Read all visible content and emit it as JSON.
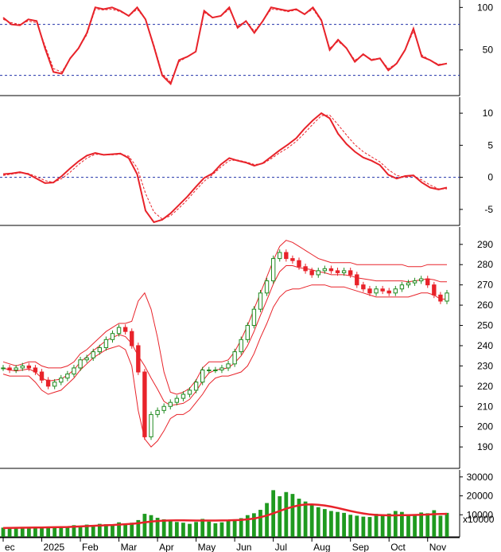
{
  "colors": {
    "price_line": "#e8232a",
    "signal_line": "#e8232a",
    "up_candle": "#1f8a1f",
    "down_candle": "#e8232a",
    "band": "#e8232a",
    "volume_bar": "#1f9a1f",
    "volume_ma": "#e8232a",
    "ref_line": "#2233aa",
    "axis": "#000000"
  },
  "chart_data": [
    {
      "type": "line",
      "title": "",
      "ylim": [
        0,
        105
      ],
      "ticks": [
        {
          "value": 100,
          "label": "100"
        },
        {
          "value": 50,
          "label": "50"
        }
      ],
      "ref_lines": [
        80,
        20
      ],
      "series": [
        {
          "role": "main",
          "values": [
            88,
            80,
            79,
            86,
            84,
            52,
            24,
            22,
            40,
            52,
            70,
            100,
            98,
            100,
            96,
            90,
            100,
            86,
            54,
            20,
            10,
            38,
            42,
            48,
            96,
            88,
            90,
            100,
            76,
            84,
            70,
            84,
            100,
            98,
            96,
            98,
            92,
            100,
            85,
            50,
            62,
            52,
            36,
            45,
            38,
            40,
            26,
            34,
            50,
            75,
            42,
            38,
            32,
            34
          ]
        },
        {
          "role": "signal",
          "values": [
            86,
            82,
            80,
            84,
            82,
            55,
            28,
            24,
            40,
            52,
            68,
            98,
            97,
            98,
            95,
            90,
            98,
            86,
            56,
            22,
            12,
            36,
            42,
            48,
            94,
            88,
            90,
            98,
            78,
            84,
            72,
            84,
            98,
            97,
            95,
            97,
            92,
            98,
            84,
            52,
            60,
            52,
            38,
            44,
            39,
            40,
            28,
            34,
            50,
            72,
            44,
            38,
            33,
            34
          ]
        }
      ]
    },
    {
      "type": "line",
      "title": "",
      "ylim": [
        -7,
        12
      ],
      "ticks": [
        {
          "value": 10,
          "label": "10"
        },
        {
          "value": 5,
          "label": "5"
        },
        {
          "value": 0,
          "label": "0"
        },
        {
          "value": -5,
          "label": "-5"
        }
      ],
      "ref_lines": [
        0
      ],
      "series": [
        {
          "role": "main",
          "values": [
            0.5,
            0.6,
            0.8,
            0.5,
            -0.2,
            -0.9,
            -0.8,
            0.2,
            1.4,
            2.5,
            3.4,
            3.8,
            3.5,
            3.6,
            3.7,
            3.0,
            0.5,
            -5.2,
            -7.0,
            -6.6,
            -5.6,
            -4.3,
            -3.0,
            -1.5,
            -0.1,
            0.6,
            2.0,
            3.0,
            2.6,
            2.3,
            1.8,
            2.2,
            3.2,
            4.2,
            5.1,
            6.1,
            7.6,
            8.9,
            10.0,
            9.2,
            6.8,
            5.2,
            4.0,
            3.1,
            2.6,
            1.9,
            0.4,
            -0.2,
            0.2,
            0.3,
            -0.8,
            -1.6,
            -1.9,
            -1.6
          ]
        },
        {
          "role": "signal",
          "values": [
            0.3,
            0.5,
            0.7,
            0.6,
            0.1,
            -0.5,
            -0.8,
            -0.2,
            0.8,
            2.0,
            3.0,
            3.6,
            3.5,
            3.5,
            3.6,
            3.3,
            1.5,
            -2.5,
            -5.4,
            -6.5,
            -6.0,
            -4.8,
            -3.5,
            -2.0,
            -0.6,
            0.4,
            1.6,
            2.6,
            2.7,
            2.4,
            2.0,
            2.1,
            2.9,
            3.8,
            4.6,
            5.6,
            6.9,
            8.3,
            9.6,
            9.7,
            8.2,
            6.6,
            5.1,
            4.0,
            3.2,
            2.4,
            1.2,
            0.3,
            0.0,
            0.2,
            -0.4,
            -1.2,
            -1.8,
            -1.8
          ]
        }
      ]
    },
    {
      "type": "candlestick",
      "title": "",
      "ylim": [
        181,
        297
      ],
      "ticks": [
        {
          "value": 290,
          "label": "290"
        },
        {
          "value": 280,
          "label": "280"
        },
        {
          "value": 270,
          "label": "270"
        },
        {
          "value": 260,
          "label": "260"
        },
        {
          "value": 250,
          "label": "250"
        },
        {
          "value": 240,
          "label": "240"
        },
        {
          "value": 230,
          "label": "230"
        },
        {
          "value": 220,
          "label": "220"
        },
        {
          "value": 210,
          "label": "210"
        },
        {
          "value": 200,
          "label": "200"
        },
        {
          "value": 190,
          "label": "190"
        }
      ],
      "close": [
        229,
        228,
        229,
        230,
        229,
        227,
        223,
        220,
        222,
        224,
        226,
        229,
        233,
        234,
        237,
        239,
        243,
        246,
        249,
        247,
        240,
        227,
        195,
        206,
        208,
        210,
        212,
        214,
        216,
        218,
        222,
        228,
        228,
        228,
        229,
        231,
        237,
        243,
        250,
        258,
        266,
        272,
        283,
        286,
        283,
        282,
        279,
        277,
        275,
        277,
        278,
        277,
        276,
        277,
        275,
        270,
        268,
        266,
        268,
        267,
        266,
        268,
        270,
        271,
        272,
        273,
        270,
        265,
        262,
        266
      ],
      "upper_band": [
        232,
        231,
        230,
        231,
        232,
        232,
        230,
        229,
        229,
        229,
        230,
        232,
        236,
        238,
        241,
        244,
        247,
        249,
        251,
        251,
        252,
        262,
        266,
        258,
        244,
        227,
        217,
        216,
        217,
        219,
        223,
        229,
        232,
        232,
        232,
        233,
        237,
        243,
        250,
        258,
        266,
        274,
        282,
        289,
        292,
        291,
        289,
        287,
        285,
        283,
        282,
        281,
        281,
        281,
        281,
        280,
        280,
        280,
        280,
        280,
        280,
        280,
        280,
        279,
        279,
        279,
        280,
        280,
        280,
        280
      ],
      "lower_band": [
        226,
        225,
        225,
        225,
        225,
        222,
        218,
        216,
        217,
        218,
        221,
        224,
        228,
        231,
        234,
        236,
        238,
        239,
        240,
        238,
        230,
        208,
        194,
        190,
        193,
        198,
        204,
        206,
        206,
        208,
        212,
        216,
        221,
        224,
        225,
        225,
        226,
        227,
        230,
        236,
        244,
        251,
        259,
        264,
        267,
        268,
        268,
        269,
        270,
        270,
        270,
        269,
        269,
        269,
        268,
        267,
        266,
        265,
        264,
        264,
        264,
        264,
        264,
        264,
        265,
        266,
        266,
        265,
        263,
        263
      ],
      "x_ticks": [
        {
          "index": 0,
          "label": "ec"
        },
        {
          "index": 6,
          "label": "2025"
        },
        {
          "index": 12,
          "label": "Feb"
        },
        {
          "index": 18,
          "label": "Mar"
        },
        {
          "index": 24,
          "label": "Apr"
        },
        {
          "index": 30,
          "label": "May"
        },
        {
          "index": 36,
          "label": "Jun"
        },
        {
          "index": 42,
          "label": "Jul"
        },
        {
          "index": 48,
          "label": "Aug"
        },
        {
          "index": 54,
          "label": "Sep"
        },
        {
          "index": 60,
          "label": "Oct"
        },
        {
          "index": 66,
          "label": "Nov"
        }
      ]
    },
    {
      "type": "bar",
      "title": "",
      "ylim": [
        0,
        32000
      ],
      "unit_label": "x10000",
      "ticks": [
        {
          "value": 30000,
          "label": "30000"
        },
        {
          "value": 20000,
          "label": "20000"
        },
        {
          "value": 10000,
          "label": "10000"
        }
      ],
      "values": [
        3200,
        3500,
        2900,
        3600,
        3400,
        3100,
        3300,
        3600,
        3800,
        3000,
        3900,
        4500,
        4200,
        4800,
        4600,
        5200,
        5000,
        4800,
        6000,
        5200,
        5800,
        7200,
        10500,
        9800,
        8400,
        7600,
        6800,
        6200,
        5800,
        5200,
        6200,
        7800,
        6400,
        5500,
        6000,
        7200,
        7600,
        8200,
        9800,
        10800,
        12600,
        16200,
        23000,
        19800,
        22000,
        21000,
        18500,
        17000,
        15500,
        14000,
        13000,
        12000,
        11500,
        11000,
        10000,
        9500,
        9000,
        8800,
        10500,
        9800,
        10600,
        12000,
        11500,
        10200,
        9800,
        11200,
        10800,
        12400,
        9500,
        11000
      ],
      "ma": [
        3000,
        3050,
        3100,
        3150,
        3200,
        3250,
        3300,
        3350,
        3400,
        3450,
        3550,
        3700,
        3850,
        4000,
        4150,
        4300,
        4450,
        4600,
        4800,
        5000,
        5200,
        5500,
        6000,
        6400,
        6700,
        6900,
        7000,
        7050,
        7050,
        7000,
        6950,
        6950,
        6950,
        6950,
        7000,
        7050,
        7150,
        7300,
        7600,
        8000,
        8700,
        9600,
        10800,
        12000,
        13200,
        14200,
        15000,
        15400,
        15500,
        15300,
        14900,
        14300,
        13600,
        12800,
        12000,
        11300,
        10700,
        10200,
        9900,
        9800,
        9700,
        9700,
        9800,
        9800,
        9900,
        10000,
        10100,
        10300,
        10400,
        10500
      ]
    }
  ]
}
